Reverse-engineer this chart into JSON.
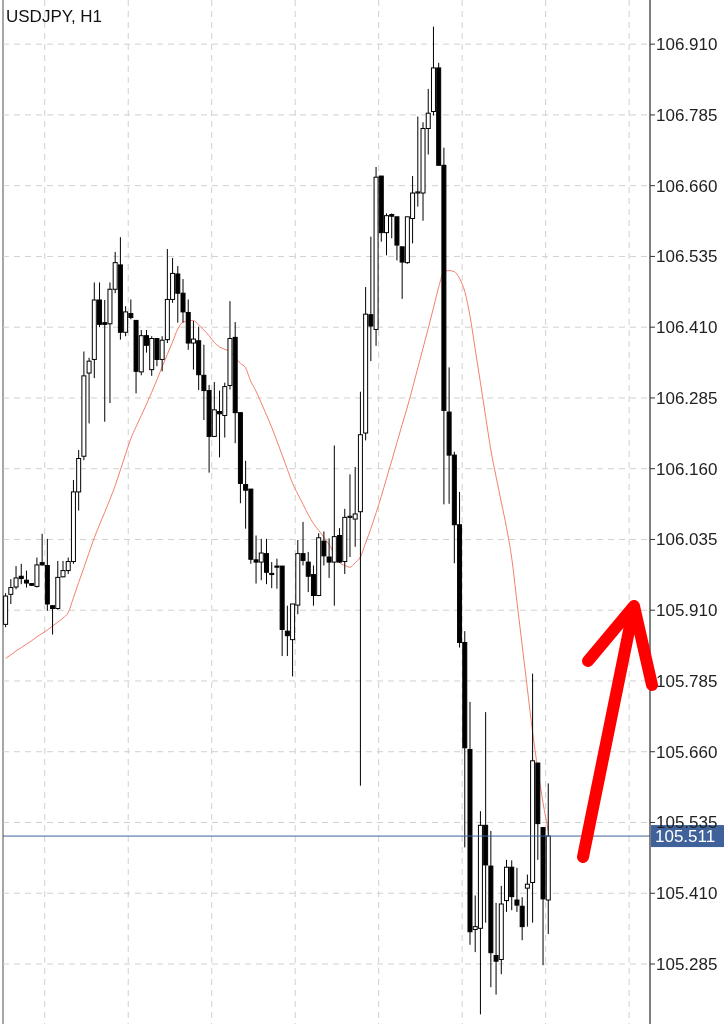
{
  "chart_data": {
    "type": "candlestick",
    "title": "USDJPY, H1",
    "categories": [
      null,
      null,
      null,
      null,
      null,
      null,
      null,
      null,
      null,
      null,
      null,
      null,
      null,
      null,
      null,
      null,
      null,
      null,
      null,
      null,
      null,
      null,
      null,
      null,
      null,
      null,
      null,
      null,
      null,
      null,
      null,
      null,
      null,
      null,
      null,
      null,
      null,
      null,
      null,
      null,
      null,
      null,
      null,
      null,
      null,
      null,
      null,
      null,
      null,
      null,
      null,
      null,
      null,
      null,
      null,
      null,
      null,
      null,
      null,
      null,
      null,
      null,
      null,
      null,
      null,
      null,
      null,
      null,
      null,
      null,
      null,
      null,
      null,
      null,
      null,
      null,
      null,
      null,
      null,
      null,
      null,
      null,
      null,
      null,
      null,
      null,
      null,
      null,
      null,
      null,
      null,
      null,
      null,
      null,
      null,
      null,
      null,
      null,
      null,
      null,
      null,
      null,
      null,
      null,
      null,
      null,
      null,
      null,
      null,
      null,
      null,
      null,
      null,
      null,
      null,
      null,
      null,
      null,
      null,
      null,
      null,
      null,
      null,
      null
    ],
    "ohlc": [
      [
        105.885,
        105.94,
        105.88,
        105.935
      ],
      [
        105.938,
        105.965,
        105.921,
        105.95
      ],
      [
        105.951,
        105.988,
        105.947,
        105.967
      ],
      [
        105.97,
        105.992,
        105.956,
        105.966
      ],
      [
        105.963,
        105.98,
        105.95,
        105.958
      ],
      [
        105.957,
        105.958,
        105.953,
        105.954
      ],
      [
        105.952,
        106.003,
        105.95,
        105.99
      ],
      [
        105.994,
        106.045,
        105.989,
        105.99
      ],
      [
        105.989,
        106.036,
        105.909,
        105.921
      ],
      [
        105.918,
        105.918,
        105.867,
        105.913
      ],
      [
        105.913,
        105.997,
        105.911,
        105.968
      ],
      [
        105.969,
        105.997,
        105.968,
        105.98
      ],
      [
        105.98,
        106.003,
        105.974,
        105.996
      ],
      [
        105.996,
        106.14,
        105.992,
        106.119
      ],
      [
        106.119,
        106.193,
        106.086,
        106.178
      ],
      [
        106.182,
        106.367,
        106.175,
        106.324
      ],
      [
        106.329,
        106.356,
        106.24,
        106.35
      ],
      [
        106.353,
        106.489,
        106.32,
        106.458
      ],
      [
        106.458,
        106.489,
        106.41,
        106.415
      ],
      [
        106.418,
        106.458,
        106.243,
        106.415
      ],
      [
        106.416,
        106.489,
        106.276,
        106.477
      ],
      [
        106.477,
        106.543,
        106.47,
        106.524
      ],
      [
        106.52,
        106.569,
        106.388,
        106.401
      ],
      [
        106.401,
        106.447,
        106.394,
        106.437
      ],
      [
        106.434,
        106.459,
        106.424,
        106.427
      ],
      [
        106.422,
        106.422,
        106.293,
        106.332
      ],
      [
        106.331,
        106.405,
        106.325,
        106.395
      ],
      [
        106.395,
        106.405,
        106.365,
        106.378
      ],
      [
        106.335,
        106.394,
        106.324,
        106.39
      ],
      [
        106.39,
        106.39,
        106.341,
        106.353
      ],
      [
        106.353,
        106.394,
        106.332,
        106.387
      ],
      [
        106.388,
        106.548,
        106.382,
        106.459
      ],
      [
        106.459,
        106.532,
        106.453,
        106.505
      ],
      [
        106.504,
        106.518,
        106.418,
        106.47
      ],
      [
        106.47,
        106.495,
        106.418,
        106.437
      ],
      [
        106.436,
        106.459,
        106.37,
        106.382
      ],
      [
        106.382,
        106.421,
        106.335,
        106.389
      ],
      [
        106.386,
        106.411,
        106.299,
        106.326
      ],
      [
        106.325,
        106.379,
        106.246,
        106.298
      ],
      [
        106.298,
        106.308,
        106.153,
        106.217
      ],
      [
        106.217,
        106.313,
        106.216,
        106.264
      ],
      [
        106.261,
        106.298,
        106.18,
        106.257
      ],
      [
        106.254,
        106.312,
        106.215,
        106.305
      ],
      [
        106.307,
        106.456,
        106.3,
        106.39
      ],
      [
        106.392,
        106.419,
        106.205,
        106.259
      ],
      [
        106.259,
        106.259,
        106.099,
        106.134
      ],
      [
        106.132,
        106.174,
        106.054,
        106.122
      ],
      [
        106.124,
        106.124,
        105.992,
        106
      ],
      [
        105.999,
        106.042,
        105.957,
        105.995
      ],
      [
        105.995,
        106.036,
        105.963,
        106.011
      ],
      [
        106.01,
        106.036,
        105.956,
        105.977
      ],
      [
        105.975,
        105.995,
        105.949,
        105.973
      ],
      [
        105.988,
        106.001,
        105.948,
        105.986
      ],
      [
        105.988,
        105.988,
        105.829,
        105.876
      ],
      [
        105.873,
        105.918,
        105.829,
        105.865
      ],
      [
        105.858,
        105.921,
        105.793,
        105.921
      ],
      [
        105.919,
        106.034,
        105.903,
        106.01
      ],
      [
        106.01,
        106.066,
        105.989,
        105.998
      ],
      [
        105.995,
        106.013,
        105.942,
        105.97
      ],
      [
        105.973,
        105.989,
        105.918,
        105.936
      ],
      [
        105.936,
        106.046,
        105.935,
        106.038
      ],
      [
        106.032,
        106.049,
        105.989,
        106.006
      ],
      [
        106.004,
        106.037,
        105.967,
        105.995
      ],
      [
        105.995,
        106.201,
        105.918,
        106.04
      ],
      [
        106.042,
        106.055,
        105.994,
        105.995
      ],
      [
        105.996,
        106.089,
        105.974,
        106.074
      ],
      [
        106.074,
        106.15,
        106.004,
        106.076
      ],
      [
        106.071,
        106.163,
        106.022,
        106.08
      ],
      [
        106.084,
        106.296,
        105.6,
        106.22
      ],
      [
        106.223,
        106.481,
        106.21,
        106.433
      ],
      [
        106.432,
        106.57,
        106.35,
        106.412
      ],
      [
        106.406,
        106.693,
        106.377,
        106.675
      ],
      [
        106.677,
        106.677,
        106.561,
        106.577
      ],
      [
        106.577,
        106.611,
        106.537,
        106.607
      ],
      [
        106.609,
        106.611,
        106.567,
        106.606
      ],
      [
        106.605,
        106.605,
        106.528,
        106.555
      ],
      [
        106.552,
        106.552,
        106.46,
        106.525
      ],
      [
        106.524,
        106.605,
        106.522,
        106.605
      ],
      [
        106.602,
        106.677,
        106.558,
        106.647
      ],
      [
        106.647,
        106.782,
        106.623,
        106.649
      ],
      [
        106.647,
        106.772,
        106.598,
        106.761
      ],
      [
        106.761,
        106.831,
        106.715,
        106.788
      ],
      [
        106.791,
        106.941,
        106.784,
        106.868
      ],
      [
        106.868,
        106.877,
        106.696,
        106.696
      ],
      [
        106.696,
        106.727,
        106.097,
        106.263
      ],
      [
        106.26,
        106.339,
        106.098,
        106.184
      ],
      [
        106.184,
        106.19,
        105.993,
        106.061
      ],
      [
        106.061,
        106.119,
        105.844,
        105.853
      ],
      [
        105.853,
        105.873,
        105.491,
        105.667
      ],
      [
        105.664,
        105.748,
        105.319,
        105.342
      ],
      [
        105.346,
        105.406,
        105.306,
        105.351
      ],
      [
        105.348,
        105.555,
        105.196,
        105.53
      ],
      [
        105.53,
        105.73,
        105.358,
        105.46
      ],
      [
        105.458,
        105.52,
        105.244,
        105.305
      ],
      [
        105.3,
        105.393,
        105.231,
        105.29
      ],
      [
        105.293,
        105.423,
        105.267,
        105.391
      ],
      [
        105.397,
        105.469,
        105.377,
        105.456
      ],
      [
        105.456,
        105.468,
        105.38,
        105.404
      ],
      [
        105.398,
        105.455,
        105.377,
        105.389
      ],
      [
        105.387,
        105.403,
        105.327,
        105.351
      ],
      [
        105.419,
        105.443,
        105.351,
        105.426
      ],
      [
        105.429,
        105.798,
        105.358,
        105.644
      ],
      [
        105.64,
        105.64,
        105.469,
        105.533
      ],
      [
        105.526,
        105.526,
        105.283,
        105.4
      ],
      [
        105.398,
        105.604,
        105.338,
        105.511
      ],
      null,
      null,
      null,
      null,
      null,
      null,
      null,
      null,
      null,
      null,
      null,
      null,
      null,
      null,
      null,
      null,
      null,
      null,
      null
    ],
    "series": [
      {
        "type": "line",
        "color": "#f4806e",
        "values": [
          105.825,
          105.831,
          105.838,
          105.844,
          105.85,
          105.856,
          105.863,
          105.869,
          105.875,
          105.882,
          105.889,
          105.896,
          105.906,
          105.932,
          105.959,
          105.985,
          106.012,
          106.038,
          106.061,
          106.083,
          106.106,
          106.13,
          106.158,
          106.186,
          106.213,
          106.234,
          106.254,
          106.274,
          106.295,
          106.317,
          106.34,
          106.362,
          106.384,
          106.407,
          106.419,
          106.421,
          106.422,
          106.414,
          106.405,
          106.395,
          106.383,
          106.375,
          106.371,
          106.367,
          null,
          106.346,
          106.338,
          106.314,
          106.297,
          106.276,
          106.255,
          106.233,
          106.209,
          106.184,
          106.159,
          106.134,
          106.115,
          106.097,
          106.079,
          106.063,
          106.051,
          106.039,
          106.026,
          null,
          105.994,
          105.989,
          105.986,
          105.994,
          106.004,
          106.029,
          106.054,
          106.082,
          106.111,
          106.143,
          106.174,
          106.206,
          106.238,
          106.269,
          106.303,
          106.338,
          106.373,
          106.408,
          106.444,
          106.481,
          106.508,
          106.51,
          106.508,
          106.496,
          106.473,
          106.43,
          106.371,
          106.312,
          106.252,
          106.193,
          106.146,
          106.101,
          106.056,
          106.002,
          105.925,
          105.848,
          105.771,
          105.695,
          null,
          105.57,
          105.52,
          null,
          null,
          null,
          null,
          null,
          null,
          null,
          null,
          null,
          null,
          null,
          null,
          null,
          null,
          null,
          null,
          null,
          null,
          null
        ]
      }
    ],
    "ylim": [
      105.179,
      106.988
    ],
    "yticks": [
      {
        "value": 106.91,
        "label": "106.910"
      },
      106.785,
      {
        "value": 106.66,
        "label": "106.660"
      },
      106.535,
      {
        "value": 106.41,
        "label": "106.410"
      },
      106.285,
      {
        "value": 106.16,
        "label": "106.160"
      },
      106.035,
      {
        "value": 105.91,
        "label": "105.910"
      },
      105.785,
      {
        "value": 105.66,
        "label": "105.660"
      },
      105.535,
      {
        "value": 105.41,
        "label": "105.410"
      },
      105.285
    ],
    "ref_lines": [
      {
        "axis": "y",
        "value": 105.511,
        "label": "105.511",
        "color": "#3f629a"
      }
    ],
    "grid": true,
    "line_style": "solid"
  }
}
